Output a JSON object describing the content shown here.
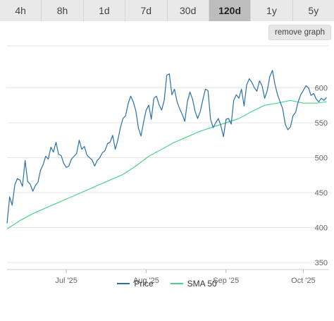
{
  "tabs": [
    {
      "label": "4h",
      "active": false
    },
    {
      "label": "8h",
      "active": false
    },
    {
      "label": "1d",
      "active": false
    },
    {
      "label": "7d",
      "active": false
    },
    {
      "label": "30d",
      "active": false
    },
    {
      "label": "120d",
      "active": true
    },
    {
      "label": "1y",
      "active": false
    },
    {
      "label": "5y",
      "active": false
    }
  ],
  "remove_graph_label": "remove graph",
  "legend": [
    {
      "label": "Price",
      "color": "#2a6fa8"
    },
    {
      "label": "SMA 50",
      "color": "#4cd38a"
    }
  ],
  "chart_data": {
    "type": "line",
    "xlabel": "",
    "ylabel": "",
    "x_ticks": [
      "Jul '25",
      "Aug '25",
      "Sep '25",
      "Oct '25"
    ],
    "x_tick_days": [
      23,
      54,
      85,
      115
    ],
    "y_ticks": [
      350,
      400,
      450,
      500,
      550,
      600
    ],
    "ylim": [
      340,
      660
    ],
    "xlim": [
      0,
      125
    ],
    "grid": true,
    "legend_position": "bottom",
    "series": [
      {
        "name": "Price",
        "color": "#2a6fa8",
        "x": [
          0,
          1,
          2,
          3,
          4,
          5,
          6,
          7,
          8,
          9,
          10,
          11,
          12,
          13,
          14,
          15,
          16,
          17,
          18,
          19,
          20,
          21,
          22,
          23,
          24,
          25,
          26,
          27,
          28,
          29,
          30,
          31,
          32,
          33,
          34,
          35,
          36,
          37,
          38,
          39,
          40,
          41,
          42,
          43,
          44,
          45,
          46,
          47,
          48,
          49,
          50,
          51,
          52,
          53,
          54,
          55,
          56,
          57,
          58,
          59,
          60,
          61,
          62,
          63,
          64,
          65,
          66,
          67,
          68,
          69,
          70,
          71,
          72,
          73,
          74,
          75,
          76,
          77,
          78,
          79,
          80,
          81,
          82,
          83,
          84,
          85,
          86,
          87,
          88,
          89,
          90,
          91,
          92,
          93,
          94,
          95,
          96,
          97,
          98,
          99,
          100,
          101,
          102,
          103,
          104,
          105,
          106,
          107,
          108,
          109,
          110,
          111,
          112,
          113,
          114,
          115,
          116,
          117,
          118,
          119,
          120,
          121,
          122,
          123,
          124
        ],
        "values": [
          406,
          444,
          432,
          461,
          470,
          468,
          459,
          496,
          466,
          462,
          452,
          460,
          465,
          482,
          490,
          502,
          498,
          515,
          508,
          522,
          505,
          503,
          492,
          486,
          488,
          498,
          502,
          506,
          525,
          512,
          516,
          504,
          500,
          497,
          488,
          496,
          500,
          507,
          510,
          520,
          522,
          532,
          512,
          525,
          543,
          556,
          560,
          577,
          588,
          580,
          567,
          542,
          531,
          551,
          568,
          575,
          555,
          585,
          588,
          576,
          568,
          582,
          618,
          620,
          590,
          598,
          580,
          570,
          562,
          552,
          580,
          594,
          584,
          566,
          556,
          566,
          583,
          598,
          596,
          555,
          543,
          550,
          556,
          546,
          530,
          555,
          556,
          548,
          582,
          590,
          585,
          598,
          574,
          604,
          613,
          608,
          600,
          595,
          610,
          603,
          585,
          596,
          616,
          625,
          605,
          590,
          580,
          570,
          548,
          540,
          544,
          560,
          565,
          580,
          590,
          596,
          603,
          600,
          589,
          592,
          584,
          580,
          585,
          582,
          586
        ]
      },
      {
        "name": "SMA 50",
        "color": "#4cd38a",
        "x": [
          0,
          5,
          10,
          15,
          20,
          25,
          30,
          35,
          40,
          45,
          50,
          55,
          60,
          65,
          70,
          75,
          80,
          85,
          90,
          95,
          100,
          105,
          110,
          115,
          120,
          124
        ],
        "values": [
          398,
          410,
          420,
          428,
          436,
          444,
          452,
          460,
          468,
          476,
          488,
          502,
          512,
          522,
          530,
          538,
          544,
          550,
          556,
          566,
          575,
          578,
          582,
          578,
          578,
          580
        ]
      }
    ]
  }
}
